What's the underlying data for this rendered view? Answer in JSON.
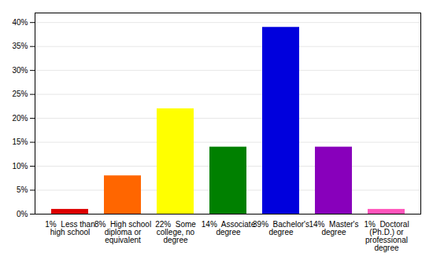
{
  "chart_data": {
    "type": "bar",
    "categories": [
      "1%  Less than\nhigh school",
      "8%  High school\ndiploma or\nequivalent",
      "22%  Some\ncollege, no\ndegree",
      "14%  Associate\ndegree",
      "39%  Bachelor's\ndegree",
      "14%  Master's\ndegree",
      "1%  Doctoral\n(Ph.D.) or\nprofessional\ndegree"
    ],
    "values": [
      1,
      8,
      22,
      14,
      39,
      14,
      1
    ],
    "colors": [
      "#dd0000",
      "#ff6600",
      "#ffff00",
      "#008000",
      "#0000dd",
      "#8800bb",
      "#ff55bb"
    ],
    "ylim": [
      0,
      42
    ],
    "yticks": [
      {
        "value": 0,
        "label": "0%"
      },
      {
        "value": 5,
        "label": "5%"
      },
      {
        "value": 10,
        "label": "10%"
      },
      {
        "value": 15,
        "label": "15%"
      },
      {
        "value": 20,
        "label": "20%"
      },
      {
        "value": 25,
        "label": "25%"
      },
      {
        "value": 30,
        "label": "30%"
      },
      {
        "value": 35,
        "label": "35%"
      },
      {
        "value": 40,
        "label": "40%"
      }
    ],
    "grid": true
  }
}
